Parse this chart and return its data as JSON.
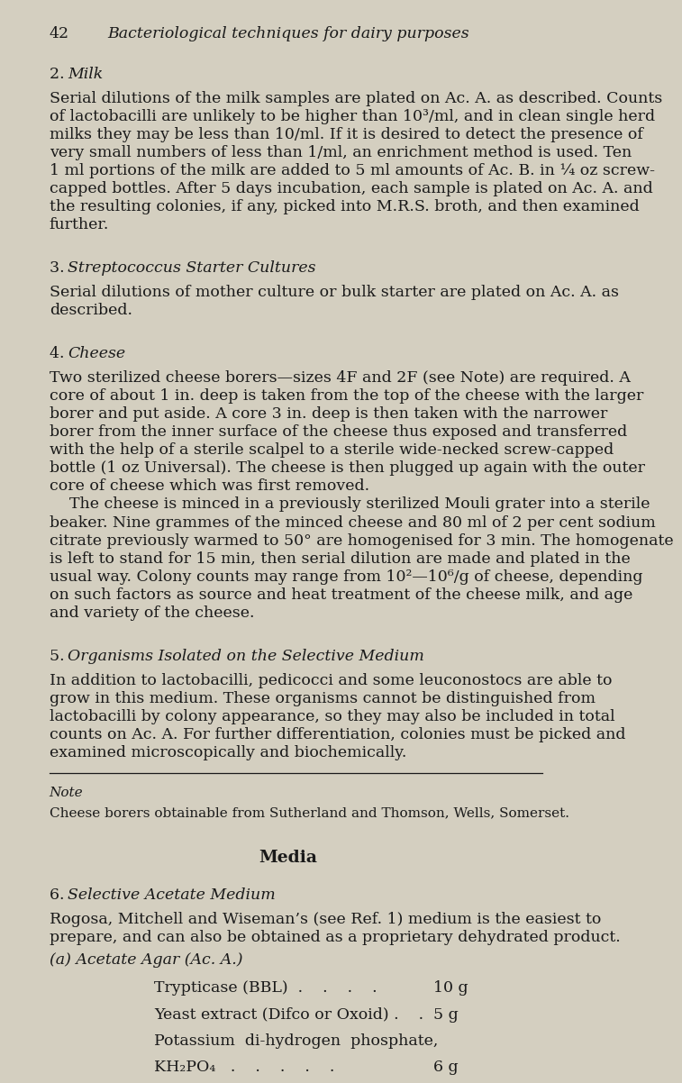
{
  "bg_color": "#d4cfc0",
  "text_color": "#1a1a1a",
  "page_width": 8.0,
  "page_height": 13.85,
  "header_number": "42",
  "header_title": "Bacteriological techniques for dairy purposes",
  "sections": [
    {
      "number": "2.",
      "title_italic": "Milk",
      "body_lines": [
        "Serial dilutions of the milk samples are plated on Ac. A. as described. Counts",
        "of lactobacilli are unlikely to be higher than 10³/ml, and in clean single herd",
        "milks they may be less than 10/ml. If it is desired to detect the presence of",
        "very small numbers of less than 1/ml, an enrichment method is used. Ten",
        "1 ml portions of the milk are added to 5 ml amounts of Ac. B. in ¼ oz screw-",
        "capped bottles. After 5 days incubation, each sample is plated on Ac. A. and",
        "the resulting colonies, if any, picked into M.R.S. broth, and then examined",
        "further."
      ]
    },
    {
      "number": "3.",
      "title_italic": "Streptococcus Starter Cultures",
      "body_lines": [
        "Serial dilutions of mother culture or bulk starter are plated on Ac. A. as",
        "described."
      ]
    },
    {
      "number": "4.",
      "title_italic": "Cheese",
      "body_parts": [
        [
          "Two sterilized cheese borers—sizes 4F and 2F (see Note) are required. A",
          "core of about 1 in. deep is taken from the top of the cheese with the larger",
          "borer and put aside. A core 3 in. deep is then taken with the narrower",
          "borer from the inner surface of the cheese thus exposed and transferred",
          "with the help of a sterile scalpel to a sterile wide-necked screw-capped",
          "bottle (1 oz Universal). The cheese is then plugged up again with the outer",
          "core of cheese which was first removed."
        ],
        [
          "    The cheese is minced in a previously sterilized Mouli grater into a sterile",
          "beaker. Nine grammes of the minced cheese and 80 ml of 2 per cent sodium",
          "citrate previously warmed to 50° are homogenised for 3 min. The homogenate",
          "is left to stand for 15 min, then serial dilution are made and plated in the",
          "usual way. Colony counts may range from 10²—10⁶/g of cheese, depending",
          "on such factors as source and heat treatment of the cheese milk, and age",
          "and variety of the cheese."
        ]
      ]
    },
    {
      "number": "5.",
      "title_italic": "Organisms Isolated on the Selective Medium",
      "body_lines": [
        "In addition to lactobacilli, pedicocci and some leuconostocs are able to",
        "grow in this medium. These organisms cannot be distinguished from",
        "lactobacilli by colony appearance, so they may also be included in total",
        "counts on Ac. A. For further differentiation, colonies must be picked and",
        "examined microscopically and biochemically."
      ]
    }
  ],
  "note_label": "Note",
  "note_body": "Cheese borers obtainable from Sutherland and Thomson, Wells, Somerset.",
  "media_title": "Media",
  "section6_number": "6.",
  "section6_title_italic": "Selective Acetate Medium",
  "section6_body_lines": [
    "Rogosa, Mitchell and Wiseman’s (see Ref. 1) medium is the easiest to",
    "prepare, and can also be obtained as a proprietary dehydrated product."
  ],
  "section6_sub": "(a) Acetate Agar (Ac. A.)",
  "ingredients": [
    {
      "name": "Trypticase (BBL)  .    .    .    .",
      "amount": "10 g"
    },
    {
      "name": "Yeast extract (Difco or Oxoid) .    .",
      "amount": "5 g"
    },
    {
      "name": "Potassium  di-hydrogen  phosphate,",
      "amount": ""
    },
    {
      "name": "KH₂PO₄   .    .    .    .    .",
      "amount": "6 g"
    }
  ]
}
